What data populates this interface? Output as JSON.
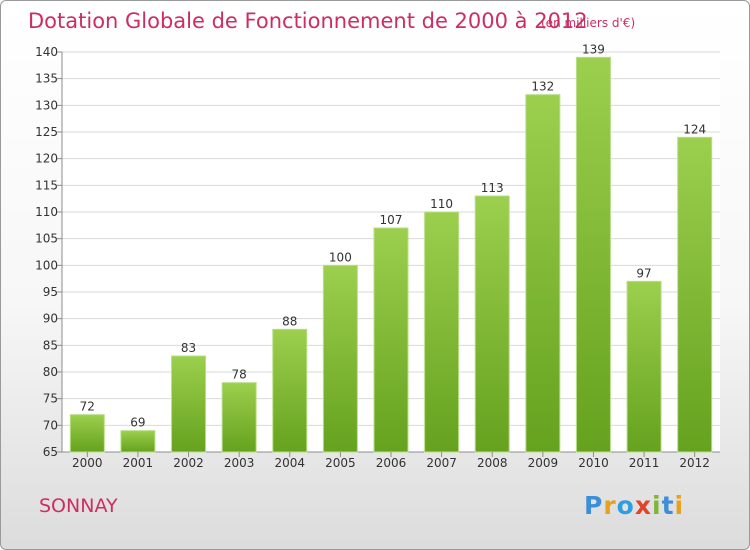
{
  "header": {
    "title": "Dotation Globale de Fonctionnement de 2000 à 2012",
    "subtitle": "(en milliers d'€)"
  },
  "footer": {
    "commune": "SONNAY",
    "logo_text": "Proxiti",
    "logo_colors": [
      "#3b8fd9",
      "#e8a020",
      "#2e9ee0",
      "#e0452a",
      "#7fb539",
      "#3b8fd9",
      "#e8a020"
    ]
  },
  "colors": {
    "title": "#cc2e63",
    "bar_light": "#9ccf4e",
    "bar_dark": "#65a21e",
    "grid": "#d9d9d9",
    "axis": "#8c8c8c"
  },
  "chart_data": {
    "type": "bar",
    "categories": [
      "2000",
      "2001",
      "2002",
      "2003",
      "2004",
      "2005",
      "2006",
      "2007",
      "2008",
      "2009",
      "2010",
      "2011",
      "2012"
    ],
    "values": [
      72,
      69,
      83,
      78,
      88,
      100,
      107,
      110,
      113,
      132,
      139,
      97,
      124
    ],
    "ylim": [
      65,
      140
    ],
    "yticks": [
      65,
      70,
      75,
      80,
      85,
      90,
      95,
      100,
      105,
      110,
      115,
      120,
      125,
      130,
      135,
      140
    ],
    "grid": true,
    "data_labels": true,
    "legend": "none"
  }
}
